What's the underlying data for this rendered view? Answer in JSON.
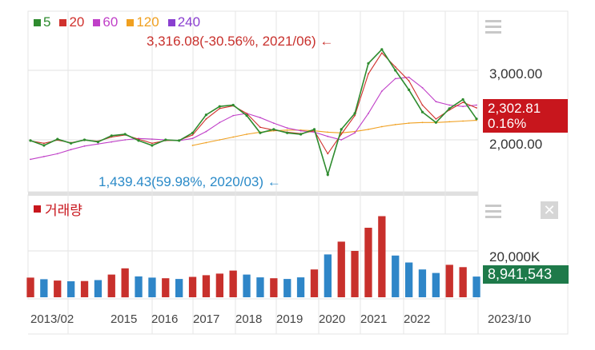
{
  "price_panel": {
    "legend": [
      {
        "label": "5",
        "color": "#2e8b2e"
      },
      {
        "label": "20",
        "color": "#d0312d"
      },
      {
        "label": "60",
        "color": "#c040c8"
      },
      {
        "label": "120",
        "color": "#f0a020"
      },
      {
        "label": "240",
        "color": "#8a3fd0"
      }
    ],
    "yticks": [
      "3,000.00",
      "2,000.00"
    ],
    "high_annotation": "3,316.08(-30.56%, 2021/06) ←",
    "low_annotation": "1,439.43(59.98%, 2020/03) ←",
    "current_price": "2,302.81",
    "current_change": "0.16%",
    "badge_color": "#c8161d",
    "menu_icon": "menu-icon"
  },
  "volume_panel": {
    "title": "거래량",
    "title_color": "#c8161d",
    "ytick": "20,000K",
    "current_volume": "8,941,543",
    "badge_color": "#1e7a4a",
    "menu_icon": "menu-icon",
    "close_icon": "close-icon"
  },
  "x_axis": {
    "labels": [
      "2013/02",
      "2015",
      "2016",
      "2017",
      "2018",
      "2019",
      "2020",
      "2021",
      "2022",
      "2023/10"
    ]
  },
  "chart_data": [
    {
      "type": "line",
      "title": "",
      "ylim": [
        1400,
        3450
      ],
      "x": [
        "2013/02",
        "2013/06",
        "2013/10",
        "2014/02",
        "2014/06",
        "2014/10",
        "2015/02",
        "2015/06",
        "2015/10",
        "2016/02",
        "2016/06",
        "2016/10",
        "2017/02",
        "2017/06",
        "2017/10",
        "2018/02",
        "2018/06",
        "2018/10",
        "2019/02",
        "2019/06",
        "2019/10",
        "2020/02",
        "2020/03",
        "2020/06",
        "2020/10",
        "2021/02",
        "2021/06",
        "2021/10",
        "2022/02",
        "2022/06",
        "2022/10",
        "2023/02",
        "2023/06",
        "2023/10"
      ],
      "series": [
        {
          "name": "5",
          "color": "#2e8b2e",
          "values": [
            1990,
            1920,
            2010,
            1950,
            2000,
            1970,
            2060,
            2080,
            1990,
            1920,
            2000,
            1990,
            2100,
            2360,
            2480,
            2500,
            2350,
            2100,
            2150,
            2100,
            2080,
            2150,
            1500,
            2150,
            2380,
            3100,
            3300,
            3000,
            2720,
            2400,
            2250,
            2450,
            2580,
            2302.81
          ]
        },
        {
          "name": "20",
          "color": "#d0312d",
          "values": [
            1985,
            1950,
            1995,
            1960,
            1995,
            1980,
            2040,
            2070,
            2010,
            1950,
            1990,
            1995,
            2070,
            2300,
            2450,
            2490,
            2380,
            2180,
            2140,
            2110,
            2090,
            2130,
            1800,
            2080,
            2350,
            2950,
            3250,
            3050,
            2850,
            2500,
            2300,
            2430,
            2540,
            2460
          ]
        },
        {
          "name": "60",
          "color": "#c040c8",
          "values": [
            1720,
            1760,
            1800,
            1860,
            1910,
            1940,
            1970,
            2000,
            2020,
            2010,
            2000,
            1990,
            2020,
            2120,
            2250,
            2350,
            2380,
            2320,
            2240,
            2170,
            2130,
            2110,
            2050,
            2000,
            2100,
            2380,
            2700,
            2880,
            2900,
            2750,
            2550,
            2500,
            2480,
            2500
          ]
        },
        {
          "name": "120",
          "color": "#f0a020",
          "values": [
            null,
            null,
            null,
            null,
            null,
            null,
            null,
            null,
            null,
            null,
            null,
            null,
            1920,
            1960,
            2000,
            2040,
            2080,
            2110,
            2130,
            2140,
            2140,
            2130,
            2110,
            2100,
            2120,
            2150,
            2190,
            2220,
            2240,
            2250,
            2250,
            2260,
            2270,
            2280
          ]
        }
      ]
    },
    {
      "type": "bar",
      "title": "거래량",
      "ylim": [
        0,
        42000
      ],
      "categories": [
        "2013/02",
        "2013/06",
        "2013/10",
        "2014/02",
        "2014/06",
        "2014/10",
        "2015/02",
        "2015/06",
        "2015/10",
        "2016/02",
        "2016/06",
        "2016/10",
        "2017/02",
        "2017/06",
        "2017/10",
        "2018/02",
        "2018/06",
        "2018/10",
        "2019/02",
        "2019/06",
        "2019/10",
        "2020/02",
        "2020/03",
        "2020/06",
        "2020/10",
        "2021/02",
        "2021/06",
        "2021/10",
        "2022/02",
        "2022/06",
        "2022/10",
        "2023/02",
        "2023/06",
        "2023/10"
      ],
      "values": [
        8500,
        7800,
        7200,
        6900,
        7000,
        7400,
        9800,
        12500,
        9000,
        8500,
        8200,
        7900,
        8800,
        9500,
        10200,
        11500,
        9800,
        8600,
        8200,
        7900,
        8600,
        12000,
        18500,
        24000,
        20000,
        30000,
        35000,
        18000,
        15000,
        12000,
        10500,
        14000,
        13000,
        8941.543
      ]
    }
  ]
}
